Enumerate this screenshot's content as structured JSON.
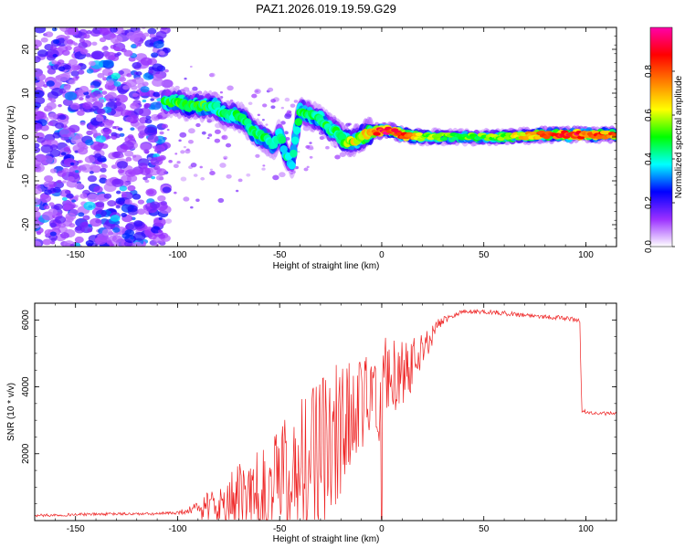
{
  "title": "PAZ1.2026.019.19.59.G29",
  "chart_data": [
    {
      "type": "heatmap",
      "xlabel": "Height of straight line (km)",
      "ylabel": "Frequency (Hz)",
      "xlim": [
        -170,
        115
      ],
      "ylim": [
        -25,
        25
      ],
      "xticks": [
        -150,
        -100,
        -50,
        0,
        50,
        100
      ],
      "yticks": [
        -20,
        -10,
        0,
        10,
        20
      ],
      "colorbar": {
        "label": "Normalized spectral amplitude",
        "range": [
          0,
          1
        ],
        "ticks": [
          0.0,
          0.2,
          0.4,
          0.6,
          0.8
        ],
        "colors": [
          "#ffffff",
          "#9b30ff",
          "#0000ff",
          "#00ffff",
          "#00ff00",
          "#ffff00",
          "#ff8000",
          "#ff0000",
          "#ff00aa"
        ]
      },
      "ridge": [
        {
          "x": -107,
          "y": 8,
          "a": 0.45
        },
        {
          "x": -100,
          "y": 8,
          "a": 0.5
        },
        {
          "x": -95,
          "y": 7,
          "a": 0.45
        },
        {
          "x": -88,
          "y": 7,
          "a": 0.5
        },
        {
          "x": -82,
          "y": 7,
          "a": 0.45
        },
        {
          "x": -77,
          "y": 5,
          "a": 0.45
        },
        {
          "x": -72,
          "y": 5,
          "a": 0.45
        },
        {
          "x": -67,
          "y": 4,
          "a": 0.45
        },
        {
          "x": -63,
          "y": 1,
          "a": 0.45
        },
        {
          "x": -58,
          "y": 0,
          "a": 0.45
        },
        {
          "x": -53,
          "y": -2,
          "a": 0.4
        },
        {
          "x": -50,
          "y": 1,
          "a": 0.4
        },
        {
          "x": -47,
          "y": -4,
          "a": 0.4
        },
        {
          "x": -44,
          "y": -6,
          "a": 0.4
        },
        {
          "x": -42,
          "y": 1,
          "a": 0.45
        },
        {
          "x": -40,
          "y": 6,
          "a": 0.45
        },
        {
          "x": -35,
          "y": 5,
          "a": 0.45
        },
        {
          "x": -30,
          "y": 4,
          "a": 0.45
        },
        {
          "x": -26,
          "y": 2,
          "a": 0.45
        },
        {
          "x": -22,
          "y": 1,
          "a": 0.45
        },
        {
          "x": -18,
          "y": -1,
          "a": 0.55
        },
        {
          "x": -14,
          "y": -1,
          "a": 0.6
        },
        {
          "x": -10,
          "y": 0,
          "a": 0.6
        },
        {
          "x": -6,
          "y": 1,
          "a": 0.65
        },
        {
          "x": 0,
          "y": 1.5,
          "a": 0.85
        },
        {
          "x": 5,
          "y": 1.5,
          "a": 0.9
        },
        {
          "x": 10,
          "y": 0.5,
          "a": 0.85
        },
        {
          "x": 20,
          "y": 0,
          "a": 0.55
        },
        {
          "x": 40,
          "y": 0,
          "a": 0.5
        },
        {
          "x": 60,
          "y": 0,
          "a": 0.55
        },
        {
          "x": 80,
          "y": 0.5,
          "a": 0.75
        },
        {
          "x": 95,
          "y": 0.5,
          "a": 0.85
        },
        {
          "x": 110,
          "y": 0.5,
          "a": 0.75
        }
      ]
    },
    {
      "type": "line",
      "xlabel": "Height of straight line (km)",
      "ylabel": "SNR (10 * v/v)",
      "xlim": [
        -170,
        115
      ],
      "ylim": [
        0,
        6500
      ],
      "xticks": [
        -150,
        -100,
        -50,
        0,
        50,
        100
      ],
      "yticks": [
        2000,
        4000,
        6000
      ],
      "color": "#ee2222",
      "series": [
        {
          "name": "SNR",
          "x": [
            -170,
            -150,
            -130,
            -110,
            -100,
            -95,
            -90,
            -85,
            -80,
            -75,
            -70,
            -65,
            -60,
            -55,
            -50,
            -45,
            -40,
            -35,
            -30,
            -25,
            -20,
            -15,
            -10,
            -5,
            0,
            5,
            10,
            15,
            20,
            25,
            30,
            35,
            40,
            50,
            60,
            70,
            80,
            90,
            97,
            98,
            100,
            105,
            110,
            115
          ],
          "y": [
            150,
            180,
            200,
            200,
            240,
            300,
            400,
            500,
            600,
            700,
            900,
            1100,
            1300,
            1500,
            1700,
            1900,
            2100,
            2300,
            2500,
            2800,
            3200,
            3600,
            3900,
            4100,
            4300,
            4500,
            4700,
            4900,
            5300,
            5700,
            6000,
            6150,
            6250,
            6250,
            6200,
            6150,
            6100,
            6050,
            6000,
            3300,
            3250,
            3200,
            3200,
            3200
          ],
          "noise": [
            60,
            60,
            60,
            60,
            80,
            150,
            250,
            400,
            500,
            700,
            1000,
            1200,
            1400,
            1500,
            1600,
            1700,
            1800,
            1900,
            1900,
            2000,
            1800,
            1500,
            1300,
            1200,
            1500,
            1100,
            900,
            700,
            500,
            300,
            200,
            120,
            100,
            100,
            100,
            100,
            100,
            100,
            100,
            80,
            80,
            80,
            80,
            80
          ]
        }
      ]
    }
  ]
}
